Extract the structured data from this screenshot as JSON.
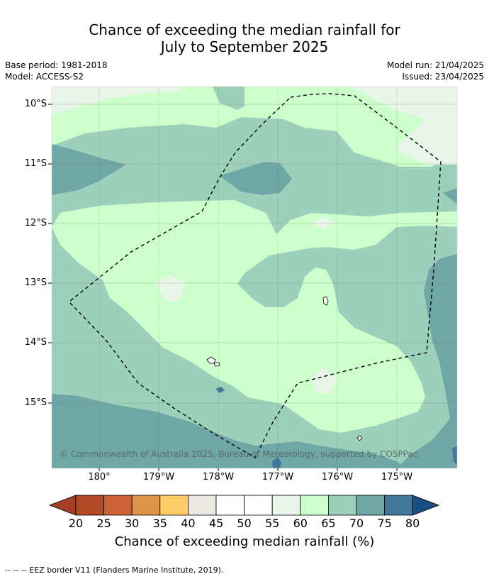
{
  "title_line1": "Chance of exceeding the median rainfall for",
  "title_line2": "July to September 2025",
  "meta": {
    "base_period": "Base period: 1981-2018",
    "model": "Model: ACCESS-S2",
    "model_run": "Model run: 21/04/2025",
    "issued": "Issued: 23/04/2025"
  },
  "map": {
    "y_ticks": [
      "10°S",
      "11°S",
      "12°S",
      "13°S",
      "14°S",
      "15°S"
    ],
    "x_ticks": [
      "180°",
      "179°W",
      "178°W",
      "177°W",
      "176°W",
      "175°W"
    ],
    "copyright": "© Commonwealth of Australia 2025, Bureau of Meteorology, supported by COSPPac",
    "colors": {
      "c60_65": "#ccffcc",
      "c65_70": "#9dd0bb",
      "c70_75": "#6fa6a6",
      "c75_80": "#41779a",
      "c55_60": "#eaf5ea",
      "land": "#ffffff"
    }
  },
  "colorbar": {
    "ticks": [
      "20",
      "25",
      "30",
      "35",
      "40",
      "45",
      "50",
      "55",
      "60",
      "65",
      "70",
      "75",
      "80"
    ],
    "colors": [
      "#a33d23",
      "#b24a26",
      "#cc6233",
      "#e09448",
      "#fecd68",
      "#ebe8e3",
      "#ffffff",
      "#ffffff",
      "#eaf5ea",
      "#ccffcc",
      "#9dd0bb",
      "#6fa6a6",
      "#41779a",
      "#1a4f86"
    ],
    "label": "Chance of exceeding median rainfall (%)"
  },
  "footnote": "-- -- -- EEZ border V11 (Flanders Marine Institute, 2019)."
}
